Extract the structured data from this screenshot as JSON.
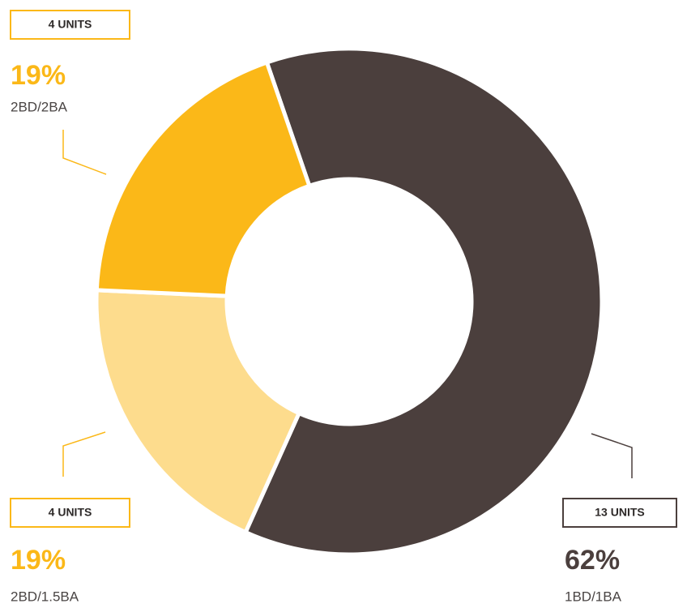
{
  "chart_data": {
    "type": "donut",
    "categories": [
      "1BD/1BA",
      "2BD/1.5BA",
      "2BD/2BA"
    ],
    "values": [
      62,
      19,
      19
    ],
    "value_labels": [
      "62%",
      "19%",
      "19%"
    ],
    "unit_labels": [
      "13 UNITS",
      "4 UNITS",
      "4 UNITS"
    ],
    "colors": [
      "#4b3f3d",
      "#fddc8d",
      "#fbb818"
    ],
    "label_colors": [
      "#4b3f3d",
      "#fbb818",
      "#fbb818"
    ],
    "border_colors": [
      "#4b3f3d",
      "#fbb818",
      "#fbb818"
    ]
  }
}
